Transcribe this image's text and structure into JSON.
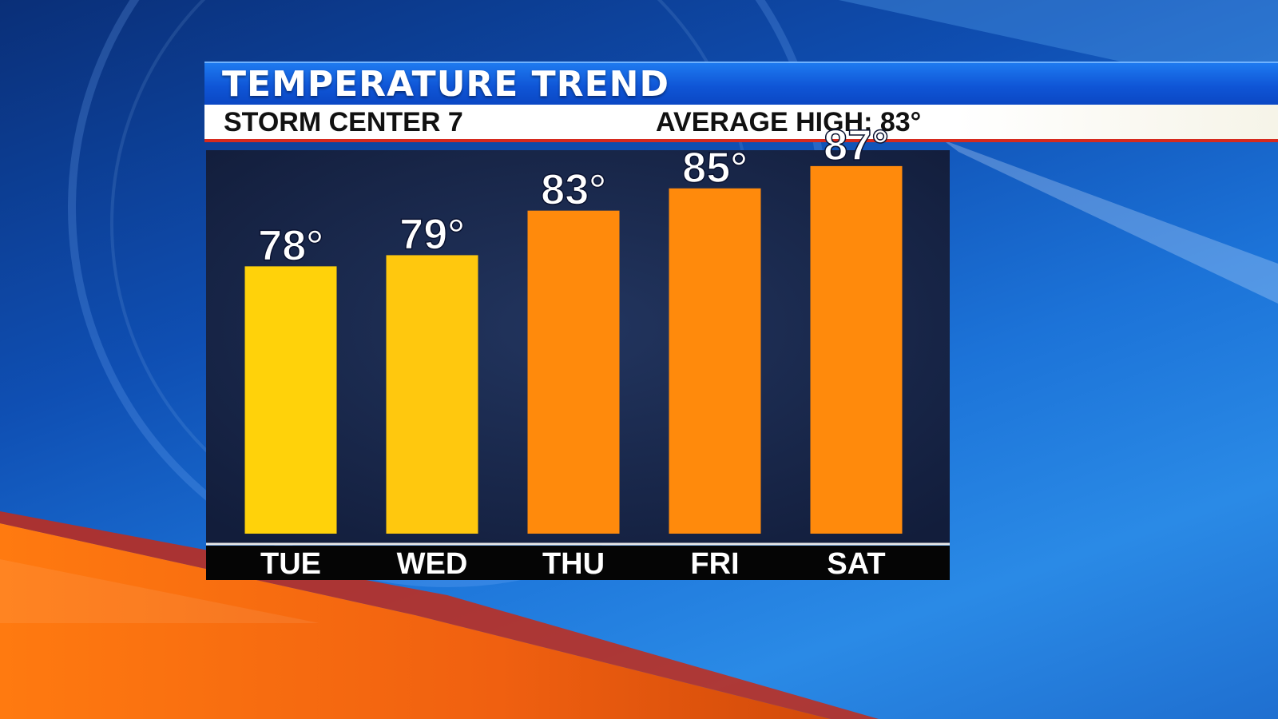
{
  "header": {
    "title": "TEMPERATURE TREND",
    "station": "STORM CENTER 7",
    "average_high": "AVERAGE HIGH: 83°"
  },
  "colors": {
    "warm": "#ffd20a",
    "hot": "#ff8a0c",
    "panel": "#17254a",
    "label_band": "#050505",
    "title_blue": "#1565e0",
    "accent_red": "#d62a1e"
  },
  "chart_data": {
    "type": "bar",
    "categories": [
      "TUE",
      "WED",
      "THU",
      "FRI",
      "SAT"
    ],
    "values": [
      78,
      79,
      83,
      85,
      87
    ],
    "value_labels": [
      "78°",
      "79°",
      "83°",
      "85°",
      "87°"
    ],
    "bar_colors": [
      "#ffd20a",
      "#ffc80e",
      "#ff8a0c",
      "#ff8a0c",
      "#ff8a0c"
    ],
    "title": "TEMPERATURE TREND",
    "xlabel": "",
    "ylabel": "",
    "ylim": [
      54,
      89
    ],
    "grid": false,
    "legend": "none"
  }
}
